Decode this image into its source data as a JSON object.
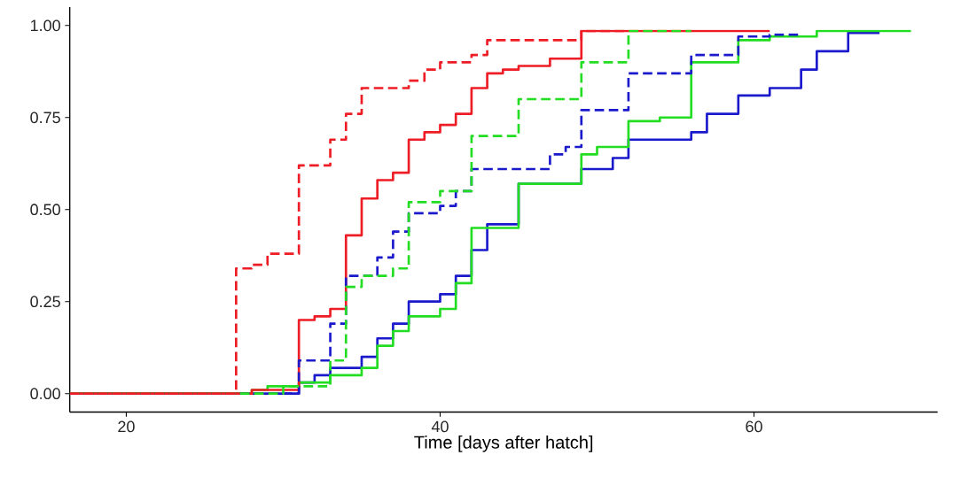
{
  "chart_data": {
    "type": "step",
    "xlabel": "Time [days after hatch]",
    "xlim": [
      16.4,
      71.7
    ],
    "ylim": [
      -0.05,
      1.05
    ],
    "xticks": [
      20,
      40,
      60
    ],
    "yticks": [
      {
        "value": 0,
        "label": "0.00"
      },
      {
        "value": 0.25,
        "label": "0.25"
      },
      {
        "value": 0.5,
        "label": "0.50"
      },
      {
        "value": 0.75,
        "label": "0.75"
      },
      {
        "value": 1,
        "label": "1.00"
      }
    ],
    "grid": false,
    "marker": "none",
    "series": [
      {
        "color": "#ee1c25",
        "line_style": "dashed",
        "x": [
          16.4,
          27,
          28,
          29,
          31,
          33,
          34,
          35,
          38,
          39,
          40,
          42,
          43,
          49,
          52
        ],
        "values": [
          0,
          0.34,
          0.35,
          0.38,
          0.62,
          0.69,
          0.76,
          0.83,
          0.85,
          0.88,
          0.9,
          0.92,
          0.96,
          0.985,
          0.985
        ]
      },
      {
        "color": "#22dd22",
        "line_style": "dashed",
        "x": [
          16.4,
          30,
          33,
          34,
          35,
          37,
          38,
          40,
          42,
          45,
          49,
          52,
          56
        ],
        "values": [
          0,
          0.02,
          0.09,
          0.29,
          0.32,
          0.34,
          0.52,
          0.55,
          0.7,
          0.8,
          0.9,
          0.985,
          0.985
        ]
      },
      {
        "color": "#1a1acc",
        "line_style": "dashed",
        "x": [
          16.4,
          31,
          33,
          34,
          36,
          37,
          38,
          40,
          41,
          42,
          47,
          48,
          49,
          52,
          56,
          59,
          61,
          63
        ],
        "values": [
          0,
          0.09,
          0.19,
          0.32,
          0.37,
          0.44,
          0.49,
          0.51,
          0.55,
          0.61,
          0.65,
          0.67,
          0.77,
          0.87,
          0.92,
          0.97,
          0.975,
          0.975
        ]
      },
      {
        "color": "#ee1c25",
        "line_style": "solid",
        "x": [
          16.4,
          28,
          31,
          32,
          33,
          34,
          35,
          36,
          37,
          38,
          39,
          40,
          41,
          42,
          43,
          44,
          45,
          47,
          49,
          61
        ],
        "values": [
          0,
          0.01,
          0.2,
          0.21,
          0.23,
          0.43,
          0.53,
          0.58,
          0.6,
          0.69,
          0.71,
          0.73,
          0.76,
          0.83,
          0.87,
          0.88,
          0.89,
          0.91,
          0.985,
          0.985
        ]
      },
      {
        "color": "#22dd22",
        "line_style": "solid",
        "x": [
          16.4,
          28,
          29,
          31,
          33,
          35,
          36,
          37,
          38,
          40,
          41,
          42,
          45,
          49,
          50,
          52,
          54,
          56,
          59,
          61,
          64,
          70
        ],
        "values": [
          0,
          0.01,
          0.02,
          0.03,
          0.05,
          0.07,
          0.13,
          0.17,
          0.21,
          0.23,
          0.3,
          0.45,
          0.57,
          0.65,
          0.67,
          0.74,
          0.75,
          0.9,
          0.96,
          0.97,
          0.985,
          0.985
        ]
      },
      {
        "color": "#1a1acc",
        "line_style": "solid",
        "x": [
          16.4,
          31,
          32,
          33,
          35,
          36,
          37,
          38,
          40,
          41,
          42,
          43,
          45,
          49,
          51,
          52,
          56,
          57,
          59,
          61,
          63,
          64,
          66,
          68
        ],
        "values": [
          0,
          0.03,
          0.05,
          0.07,
          0.1,
          0.15,
          0.19,
          0.25,
          0.27,
          0.32,
          0.39,
          0.46,
          0.57,
          0.61,
          0.64,
          0.69,
          0.71,
          0.76,
          0.81,
          0.83,
          0.88,
          0.93,
          0.98,
          0.98
        ]
      }
    ]
  }
}
